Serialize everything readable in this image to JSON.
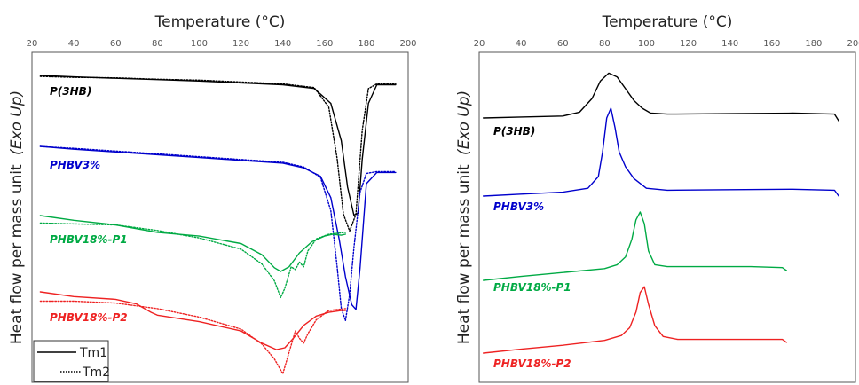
{
  "chart_data": [
    {
      "type": "line",
      "panel": "left",
      "xlabel": "Temperature (°C)",
      "ylabel": "Heat flow per mass unit",
      "ylabel_suffix": "(Exo Up)",
      "xlim": [
        20,
        200
      ],
      "xticks": [
        "20",
        "40",
        "60",
        "80",
        "100",
        "120",
        "140",
        "160",
        "180",
        "200"
      ],
      "grid": false,
      "legend": {
        "position": "bottom-left",
        "entries": [
          {
            "label": "Tm1",
            "style": "solid"
          },
          {
            "label": "Tm2",
            "style": "dotted"
          }
        ]
      },
      "series": [
        {
          "name": "P(3HB)",
          "color": "#000000",
          "style": "solid",
          "x": [
            24,
            40,
            60,
            80,
            100,
            120,
            140,
            155,
            163,
            168,
            171,
            174,
            176,
            178,
            181,
            185,
            194
          ],
          "y": [
            0,
            -1.5,
            -3,
            -4.5,
            -6,
            -8,
            -10,
            -14,
            -30,
            -70,
            -120,
            -150,
            -148,
            -90,
            -30,
            -10,
            -10
          ]
        },
        {
          "name": "P(3HB)",
          "color": "#000000",
          "style": "dotted",
          "x": [
            24,
            40,
            60,
            80,
            100,
            120,
            140,
            155,
            162,
            166,
            169,
            172,
            175,
            178,
            181,
            185,
            194
          ],
          "y": [
            -2,
            -3,
            -3.5,
            -5,
            -6,
            -8,
            -10,
            -14,
            -35,
            -90,
            -150,
            -168,
            -150,
            -60,
            -15,
            -10,
            -10
          ]
        },
        {
          "name": "PHBV3%",
          "color": "#0000cc",
          "style": "solid",
          "x": [
            24,
            40,
            60,
            80,
            100,
            120,
            140,
            150,
            158,
            163,
            167,
            170,
            173,
            175,
            177,
            180,
            185,
            194
          ],
          "y": [
            0,
            -3,
            -6,
            -9,
            -12,
            -15,
            -18,
            -23,
            -32,
            -55,
            -100,
            -140,
            -170,
            -175,
            -130,
            -40,
            -28,
            -28
          ]
        },
        {
          "name": "PHBV3%",
          "color": "#0000cc",
          "style": "dotted",
          "x": [
            24,
            40,
            60,
            80,
            100,
            120,
            140,
            150,
            158,
            163,
            166,
            168,
            170,
            172,
            174,
            177,
            180,
            185,
            194
          ],
          "y": [
            -1,
            -3,
            -6,
            -9,
            -12,
            -15,
            -18,
            -23,
            -34,
            -70,
            -130,
            -175,
            -188,
            -160,
            -110,
            -50,
            -30,
            -28,
            -28
          ]
        },
        {
          "name": "PHBV18%-P1",
          "color": "#00aa44",
          "style": "solid",
          "x": [
            24,
            40,
            60,
            80,
            100,
            120,
            130,
            136,
            139,
            143,
            148,
            154,
            160,
            164,
            168,
            170
          ],
          "y": [
            0,
            -5,
            -10,
            -18,
            -22,
            -30,
            -42,
            -56,
            -60,
            -55,
            -40,
            -28,
            -22,
            -20,
            -21,
            -20
          ]
        },
        {
          "name": "PHBV18%-P1",
          "color": "#00aa44",
          "style": "dotted",
          "x": [
            24,
            40,
            60,
            80,
            100,
            120,
            130,
            136,
            139,
            141,
            144,
            146,
            148,
            150,
            152,
            156,
            162,
            170
          ],
          "y": [
            -8,
            -9,
            -10,
            -16,
            -24,
            -36,
            -52,
            -70,
            -88,
            -78,
            -55,
            -58,
            -50,
            -55,
            -38,
            -25,
            -20,
            -18
          ]
        },
        {
          "name": "PHBV18%-P2",
          "color": "#ee2222",
          "style": "solid",
          "x": [
            24,
            40,
            60,
            70,
            77,
            80,
            100,
            120,
            130,
            137,
            141,
            145,
            150,
            156,
            162,
            168,
            170
          ],
          "y": [
            0,
            -5,
            -8,
            -13,
            -22,
            -25,
            -32,
            -42,
            -55,
            -62,
            -60,
            -50,
            -36,
            -26,
            -22,
            -20,
            -20
          ]
        },
        {
          "name": "PHBV18%-P2",
          "color": "#ee2222",
          "style": "dotted",
          "x": [
            24,
            40,
            60,
            80,
            100,
            120,
            130,
            136,
            140,
            143,
            146,
            148,
            150,
            152,
            156,
            162,
            170
          ],
          "y": [
            -10,
            -10,
            -12,
            -18,
            -27,
            -40,
            -56,
            -72,
            -88,
            -65,
            -42,
            -50,
            -55,
            -45,
            -30,
            -20,
            -18
          ]
        }
      ]
    },
    {
      "type": "line",
      "panel": "right",
      "xlabel": "Temperature (°C)",
      "ylabel": "Heat flow per mass unit",
      "ylabel_suffix": "(Exo Up)",
      "xlim": [
        20,
        200
      ],
      "xticks": [
        "20",
        "40",
        "60",
        "80",
        "100",
        "120",
        "140",
        "160",
        "180",
        "200"
      ],
      "grid": false,
      "series": [
        {
          "name": "P(3HB)",
          "color": "#000000",
          "style": "solid",
          "x": [
            22,
            40,
            60,
            68,
            74,
            78,
            82,
            86,
            90,
            94,
            98,
            102,
            110,
            140,
            170,
            190,
            192
          ],
          "y": [
            0,
            1,
            2,
            6,
            20,
            38,
            46,
            42,
            30,
            18,
            10,
            5,
            4,
            4.5,
            5,
            4,
            -3
          ]
        },
        {
          "name": "PHBV3%",
          "color": "#0000cc",
          "style": "solid",
          "x": [
            22,
            40,
            60,
            72,
            77,
            79,
            81,
            83,
            85,
            87,
            90,
            94,
            100,
            110,
            140,
            170,
            190,
            192
          ],
          "y": [
            0,
            2,
            4,
            8,
            20,
            45,
            80,
            90,
            70,
            45,
            30,
            18,
            8,
            6,
            6.5,
            7,
            6,
            0
          ]
        },
        {
          "name": "PHBV18%-P1",
          "color": "#00aa44",
          "style": "solid",
          "x": [
            22,
            40,
            60,
            80,
            86,
            90,
            93,
            95,
            97,
            99,
            101,
            104,
            110,
            130,
            150,
            165,
            167
          ],
          "y": [
            0,
            4,
            8,
            12,
            16,
            24,
            42,
            62,
            70,
            58,
            30,
            16,
            14,
            14,
            14,
            13,
            10
          ]
        },
        {
          "name": "PHBV18%-P2",
          "color": "#ee2222",
          "style": "solid",
          "x": [
            22,
            40,
            60,
            80,
            88,
            92,
            95,
            97,
            99,
            101,
            104,
            108,
            115,
            140,
            165,
            167
          ],
          "y": [
            0,
            4,
            8,
            13,
            18,
            26,
            42,
            62,
            68,
            50,
            28,
            17,
            14,
            14,
            14,
            11
          ]
        }
      ]
    }
  ]
}
